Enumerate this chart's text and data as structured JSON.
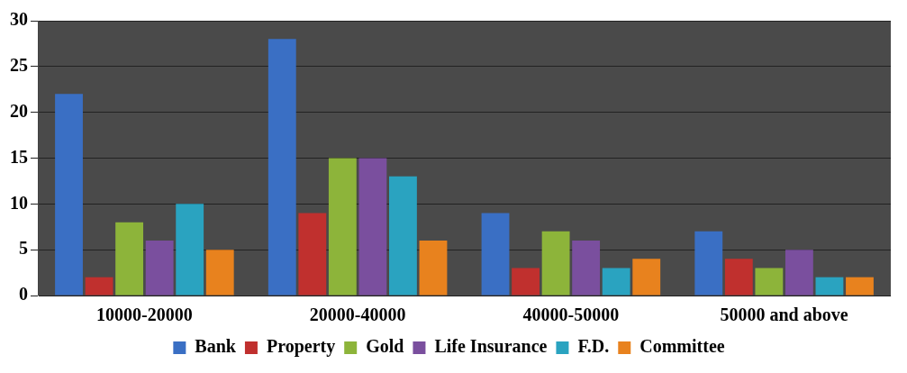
{
  "chart_data": {
    "type": "bar",
    "categories": [
      "10000-20000",
      "20000-40000",
      "40000-50000",
      "50000 and above"
    ],
    "series": [
      {
        "name": "Bank",
        "color": "#3a6fc4",
        "values": [
          22,
          28,
          9,
          7
        ]
      },
      {
        "name": "Property",
        "color": "#c0302e",
        "values": [
          2,
          9,
          3,
          4
        ]
      },
      {
        "name": "Gold",
        "color": "#8db43a",
        "values": [
          8,
          15,
          7,
          3
        ]
      },
      {
        "name": "Life Insurance",
        "color": "#7a4f9e",
        "values": [
          6,
          15,
          6,
          5
        ]
      },
      {
        "name": "F.D.",
        "color": "#2aa3c0",
        "values": [
          10,
          13,
          3,
          2
        ]
      },
      {
        "name": "Committee",
        "color": "#e8821e",
        "values": [
          5,
          6,
          4,
          2
        ]
      }
    ],
    "ylim": [
      0,
      30
    ],
    "yticks": [
      0,
      5,
      10,
      15,
      20,
      25,
      30
    ],
    "grid": "y",
    "legend": "bottom"
  }
}
